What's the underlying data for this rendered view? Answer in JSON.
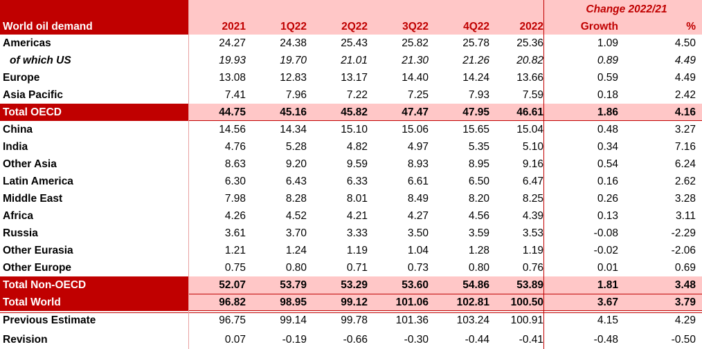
{
  "table": {
    "title": "World oil demand",
    "change_group": "Change 2022/21",
    "columns": [
      "2021",
      "1Q22",
      "2Q22",
      "3Q22",
      "4Q22",
      "2022",
      "Growth",
      "%"
    ],
    "rows": [
      {
        "label": "Americas",
        "values": [
          "24.27",
          "24.38",
          "25.43",
          "25.82",
          "25.78",
          "25.36",
          "1.09",
          "4.50"
        ]
      },
      {
        "label": "of which US",
        "values": [
          "19.93",
          "19.70",
          "21.01",
          "21.30",
          "21.26",
          "20.82",
          "0.89",
          "4.49"
        ]
      },
      {
        "label": "Europe",
        "values": [
          "13.08",
          "12.83",
          "13.17",
          "14.40",
          "14.24",
          "13.66",
          "0.59",
          "4.49"
        ]
      },
      {
        "label": "Asia Pacific",
        "values": [
          "7.41",
          "7.96",
          "7.22",
          "7.25",
          "7.93",
          "7.59",
          "0.18",
          "2.42"
        ]
      },
      {
        "label": "Total OECD",
        "values": [
          "44.75",
          "45.16",
          "45.82",
          "47.47",
          "47.95",
          "46.61",
          "1.86",
          "4.16"
        ]
      },
      {
        "label": "China",
        "values": [
          "14.56",
          "14.34",
          "15.10",
          "15.06",
          "15.65",
          "15.04",
          "0.48",
          "3.27"
        ]
      },
      {
        "label": "India",
        "values": [
          "4.76",
          "5.28",
          "4.82",
          "4.97",
          "5.35",
          "5.10",
          "0.34",
          "7.16"
        ]
      },
      {
        "label": "Other Asia",
        "values": [
          "8.63",
          "9.20",
          "9.59",
          "8.93",
          "8.95",
          "9.16",
          "0.54",
          "6.24"
        ]
      },
      {
        "label": "Latin America",
        "values": [
          "6.30",
          "6.43",
          "6.33",
          "6.61",
          "6.50",
          "6.47",
          "0.16",
          "2.62"
        ]
      },
      {
        "label": "Middle East",
        "values": [
          "7.98",
          "8.28",
          "8.01",
          "8.49",
          "8.20",
          "8.25",
          "0.26",
          "3.28"
        ]
      },
      {
        "label": "Africa",
        "values": [
          "4.26",
          "4.52",
          "4.21",
          "4.27",
          "4.56",
          "4.39",
          "0.13",
          "3.11"
        ]
      },
      {
        "label": "Russia",
        "values": [
          "3.61",
          "3.70",
          "3.33",
          "3.50",
          "3.59",
          "3.53",
          "-0.08",
          "-2.29"
        ]
      },
      {
        "label": "Other Eurasia",
        "values": [
          "1.21",
          "1.24",
          "1.19",
          "1.04",
          "1.28",
          "1.19",
          "-0.02",
          "-2.06"
        ]
      },
      {
        "label": "Other Europe",
        "values": [
          "0.75",
          "0.80",
          "0.71",
          "0.73",
          "0.80",
          "0.76",
          "0.01",
          "0.69"
        ]
      },
      {
        "label": "Total Non-OECD",
        "values": [
          "52.07",
          "53.79",
          "53.29",
          "53.60",
          "54.86",
          "53.89",
          "1.81",
          "3.48"
        ]
      },
      {
        "label": "Total World",
        "values": [
          "96.82",
          "98.95",
          "99.12",
          "101.06",
          "102.81",
          "100.50",
          "3.67",
          "3.79"
        ]
      },
      {
        "label": "Previous Estimate",
        "values": [
          "96.75",
          "99.14",
          "99.78",
          "101.36",
          "103.24",
          "100.91",
          "4.15",
          "4.29"
        ]
      },
      {
        "label": "Revision",
        "values": [
          "0.07",
          "-0.19",
          "-0.66",
          "-0.30",
          "-0.44",
          "-0.41",
          "-0.48",
          "-0.50"
        ]
      }
    ]
  }
}
